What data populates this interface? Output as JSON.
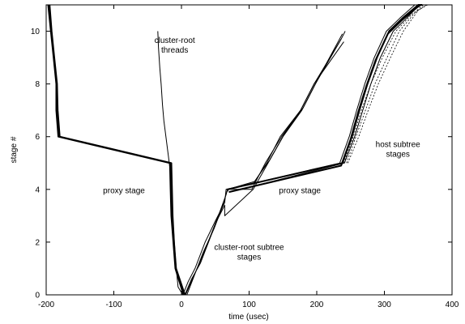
{
  "chart_data": {
    "type": "line",
    "xlabel": "time (usec)",
    "ylabel": "stage #",
    "xlim": [
      -200,
      400
    ],
    "ylim": [
      0,
      11
    ],
    "x_ticks": [
      -200,
      -100,
      0,
      100,
      200,
      300,
      400
    ],
    "y_ticks": [
      0,
      2,
      4,
      6,
      8,
      10
    ],
    "grid": false,
    "legend": "none",
    "annotations": [
      {
        "lines": [
          "cluster-root",
          "threads"
        ],
        "x": -10,
        "y": 9.55
      },
      {
        "lines": [
          "proxy stage"
        ],
        "x": -85,
        "y": 3.85
      },
      {
        "lines": [
          "proxy stage"
        ],
        "x": 175,
        "y": 3.85
      },
      {
        "lines": [
          "host subtree",
          "stages"
        ],
        "x": 320,
        "y": 5.6
      },
      {
        "lines": [
          "cluster-root subtree",
          "stages"
        ],
        "x": 100,
        "y": 1.7
      }
    ],
    "series": [
      {
        "style": "thick",
        "x": [
          -195,
          -192,
          -188,
          -184,
          -183,
          -180,
          -15,
          -14,
          -13,
          -11,
          -8,
          5
        ],
        "y": [
          11,
          10,
          9,
          8,
          7,
          6,
          5,
          4,
          3,
          2,
          1,
          0
        ]
      },
      {
        "style": "thick",
        "x": [
          -197,
          -193,
          -189,
          -185,
          -185,
          -182,
          -17,
          -16,
          -15,
          -12,
          -9,
          3
        ],
        "y": [
          11,
          10,
          9,
          8,
          7,
          6,
          5,
          4,
          3,
          2,
          1,
          0
        ]
      },
      {
        "style": "thin",
        "x": [
          -35,
          -34,
          -32,
          -30,
          -28,
          -26,
          -23,
          -20,
          -17,
          -15,
          -13,
          -11,
          -9,
          -7,
          -5,
          2
        ],
        "y": [
          10,
          9.4,
          8.6,
          8,
          7.2,
          6.6,
          6,
          5.4,
          4.8,
          4,
          3,
          2.2,
          1.4,
          0.8,
          0.3,
          0
        ]
      },
      {
        "style": "thin",
        "x": [
          2,
          10,
          20,
          35,
          50,
          64,
          66,
          106,
          126,
          146,
          176,
          196,
          236,
          242
        ],
        "y": [
          0,
          0.5,
          1,
          2,
          2.8,
          3.5,
          4,
          4.2,
          5,
          6,
          7,
          8,
          9.7,
          10
        ]
      },
      {
        "style": "thin",
        "x": [
          5,
          15,
          28,
          40,
          52,
          64,
          64,
          106,
          128,
          150,
          178,
          198,
          236
        ],
        "y": [
          0,
          0.6,
          1.2,
          2,
          2.8,
          3.4,
          3,
          4,
          5,
          6,
          7,
          8,
          9.7
        ]
      },
      {
        "style": "thin",
        "x": [
          8,
          20,
          32,
          48,
          60,
          67,
          70,
          104,
          124,
          148,
          176,
          196,
          240
        ],
        "y": [
          0,
          0.8,
          1.6,
          2.5,
          3.3,
          3.9,
          4,
          4,
          5,
          6,
          7,
          8,
          9.6
        ]
      },
      {
        "style": "thin",
        "x": [
          6,
          18,
          30,
          44,
          56,
          66,
          68,
          108,
          130,
          152,
          180,
          200,
          238
        ],
        "y": [
          0,
          0.7,
          1.4,
          2.3,
          3.1,
          3.8,
          4,
          4.3,
          5.1,
          6.1,
          7.1,
          8.1,
          9.9
        ]
      },
      {
        "style": "thick",
        "x": [
          68,
          238,
          252,
          263,
          275,
          289,
          307,
          327,
          350,
          356
        ],
        "y": [
          4,
          5,
          6,
          7,
          8,
          9,
          10,
          10.5,
          11,
          11
        ]
      },
      {
        "style": "thick",
        "x": [
          70,
          236,
          250,
          261,
          273,
          287,
          305,
          325,
          348,
          354
        ],
        "y": [
          3.9,
          4.9,
          5.9,
          6.9,
          7.9,
          8.9,
          9.9,
          10.4,
          10.9,
          11
        ]
      },
      {
        "style": "thin",
        "x": [
          72,
          241,
          256,
          268,
          280,
          294,
          313,
          333,
          352,
          358
        ],
        "y": [
          3.9,
          5,
          6,
          7,
          8,
          9,
          10,
          10.5,
          11,
          11
        ]
      },
      {
        "style": "thin",
        "x": [
          66,
          234,
          248,
          259,
          271,
          285,
          303,
          323,
          345,
          352
        ],
        "y": [
          4,
          5,
          6,
          7,
          8,
          9,
          10,
          10.5,
          11,
          11
        ]
      },
      {
        "style": "dotted",
        "x": [
          244,
          258,
          272,
          286,
          304,
          322,
          345,
          362
        ],
        "y": [
          5,
          6,
          7,
          8,
          9,
          10,
          10.7,
          11
        ]
      },
      {
        "style": "dotted",
        "x": [
          240,
          254,
          266,
          280,
          297,
          317,
          339,
          358
        ],
        "y": [
          5,
          6,
          7,
          8,
          9,
          10,
          10.6,
          11
        ]
      },
      {
        "style": "dotted",
        "x": [
          246,
          262,
          276,
          291,
          309,
          328,
          350,
          364
        ],
        "y": [
          5,
          6,
          7,
          8,
          9,
          10,
          10.8,
          11
        ]
      }
    ]
  }
}
